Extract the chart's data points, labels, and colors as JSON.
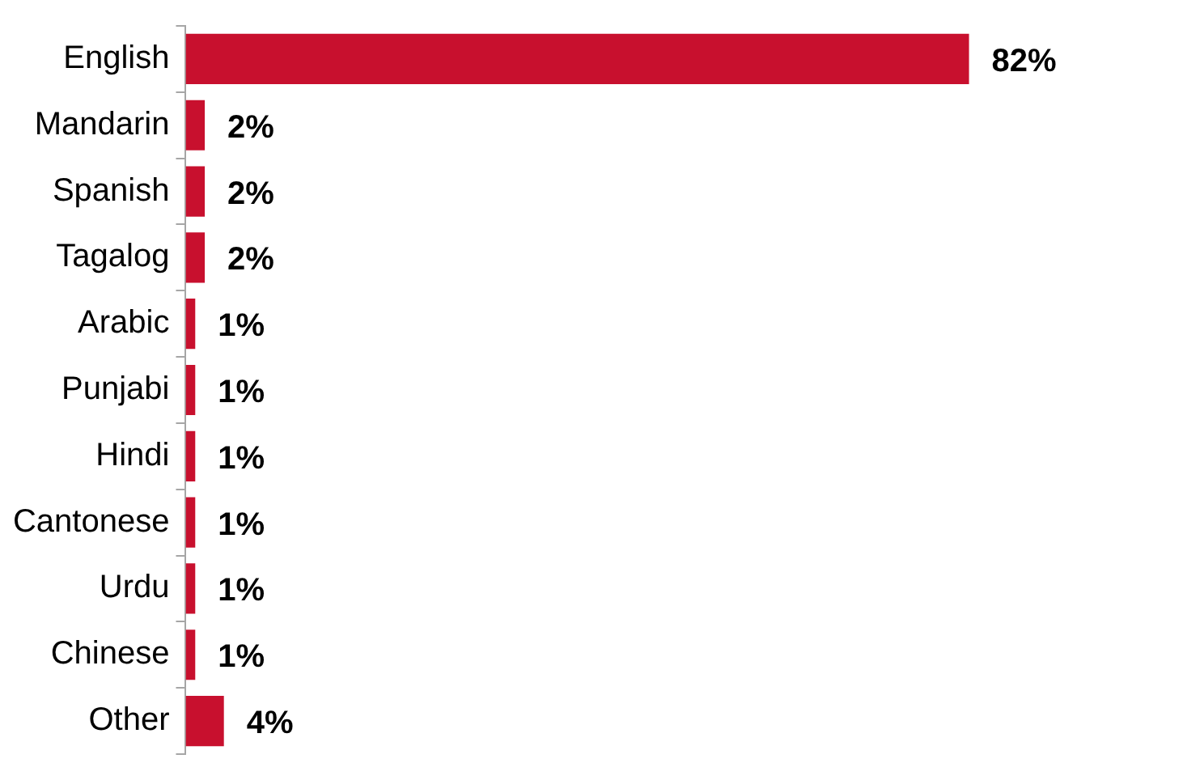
{
  "chart_data": {
    "type": "bar",
    "orientation": "horizontal",
    "categories": [
      "English",
      "Mandarin",
      "Spanish",
      "Tagalog",
      "Arabic",
      "Punjabi",
      "Hindi",
      "Cantonese",
      "Urdu",
      "Chinese",
      "Other"
    ],
    "values": [
      82,
      2,
      2,
      2,
      1,
      1,
      1,
      1,
      1,
      1,
      4
    ],
    "value_labels": [
      "82%",
      "2%",
      "2%",
      "2%",
      "1%",
      "1%",
      "1%",
      "1%",
      "1%",
      "1%",
      "4%"
    ],
    "color": "#c8102e",
    "grid": false,
    "legend": false,
    "tick_labels": "y"
  }
}
